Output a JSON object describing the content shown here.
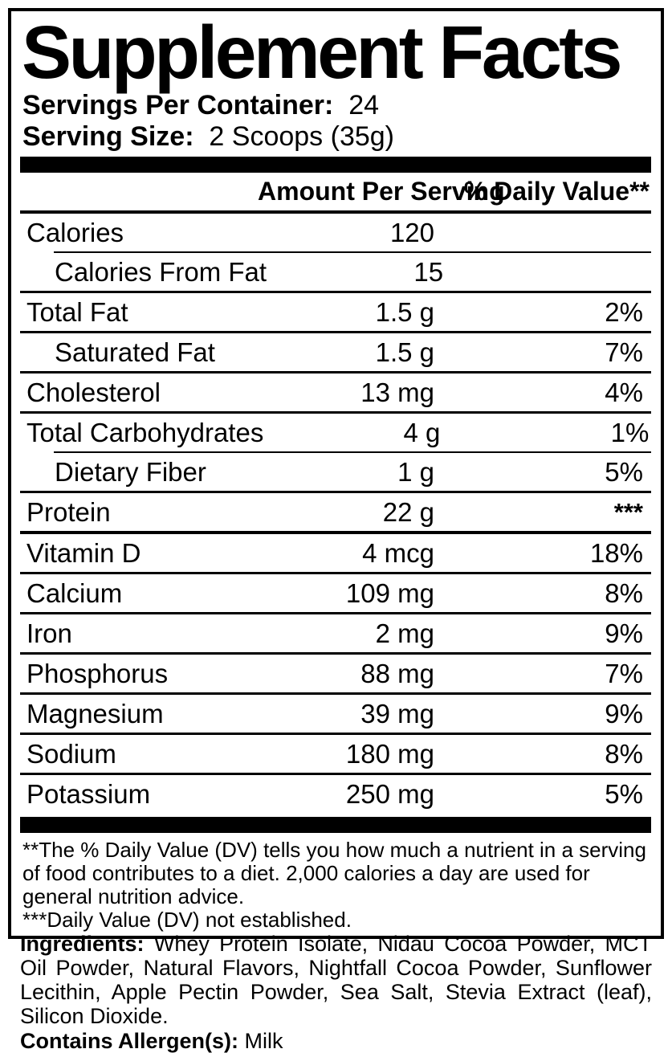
{
  "colors": {
    "text": "#000000",
    "background": "#ffffff",
    "rule": "#000000"
  },
  "title": "Supplement Facts",
  "serving_info": {
    "servings_per_container_label": "Servings Per Container:",
    "servings_per_container_value": "24",
    "serving_size_label": "Serving Size:",
    "serving_size_value": "2 Scoops (35g)"
  },
  "table": {
    "header": {
      "amount": "Amount Per Serving",
      "daily_value": "% Daily Value**"
    },
    "rows": [
      {
        "label": "Calories",
        "amount": "120",
        "dv": "",
        "indent": false,
        "sep": "indent",
        "dv_raised": false
      },
      {
        "label": "Calories From Fat",
        "amount": "15",
        "dv": "",
        "indent": true,
        "sep": "full",
        "dv_raised": false
      },
      {
        "label": "Total Fat",
        "amount": "1.5 g",
        "dv": "2%",
        "indent": false,
        "sep": "full",
        "dv_raised": false
      },
      {
        "label": "Saturated Fat",
        "amount": "1.5 g",
        "dv": "7%",
        "indent": true,
        "sep": "full",
        "dv_raised": false
      },
      {
        "label": "Cholesterol",
        "amount": "13 mg",
        "dv": "4%",
        "indent": false,
        "sep": "full",
        "dv_raised": false
      },
      {
        "label": "Total Carbohydrates",
        "amount": "4 g",
        "dv": "1%",
        "indent": false,
        "sep": "indent",
        "dv_raised": false
      },
      {
        "label": "Dietary Fiber",
        "amount": "1 g",
        "dv": "5%",
        "indent": true,
        "sep": "full",
        "dv_raised": false
      },
      {
        "label": "Protein",
        "amount": "22 g",
        "dv": "***",
        "indent": false,
        "sep": "thick",
        "dv_raised": true
      },
      {
        "label": "Vitamin D",
        "amount": "4 mcg",
        "dv": "18%",
        "indent": false,
        "sep": "full",
        "dv_raised": false
      },
      {
        "label": "Calcium",
        "amount": "109 mg",
        "dv": "8%",
        "indent": false,
        "sep": "full",
        "dv_raised": false
      },
      {
        "label": "Iron",
        "amount": "2 mg",
        "dv": "9%",
        "indent": false,
        "sep": "full",
        "dv_raised": false
      },
      {
        "label": "Phosphorus",
        "amount": "88 mg",
        "dv": "7%",
        "indent": false,
        "sep": "full",
        "dv_raised": false
      },
      {
        "label": "Magnesium",
        "amount": "39 mg",
        "dv": "9%",
        "indent": false,
        "sep": "full",
        "dv_raised": false
      },
      {
        "label": "Sodium",
        "amount": "180 mg",
        "dv": "8%",
        "indent": false,
        "sep": "full",
        "dv_raised": false
      },
      {
        "label": "Potassium",
        "amount": "250 mg",
        "dv": "5%",
        "indent": false,
        "sep": "none",
        "dv_raised": false
      }
    ]
  },
  "footnotes": [
    "**The % Daily Value (DV) tells you how much a nutrient in a serving of food contributes to a diet. 2,000 calories a day are used for general nutrition advice.",
    "***Daily Value (DV) not established."
  ],
  "ingredients": {
    "label": "Ingredients:",
    "text": " Whey Protein Isolate, Nidau Cocoa Powder, MCT Oil Powder, Natural Flavors, Nightfall Cocoa Powder, Sunflower Lecithin, Apple Pectin Powder, Sea Salt, Stevia Extract (leaf), Silicon Dioxide.",
    "allergen_label": "Contains Allergen(s):",
    "allergen_value": " Milk"
  }
}
